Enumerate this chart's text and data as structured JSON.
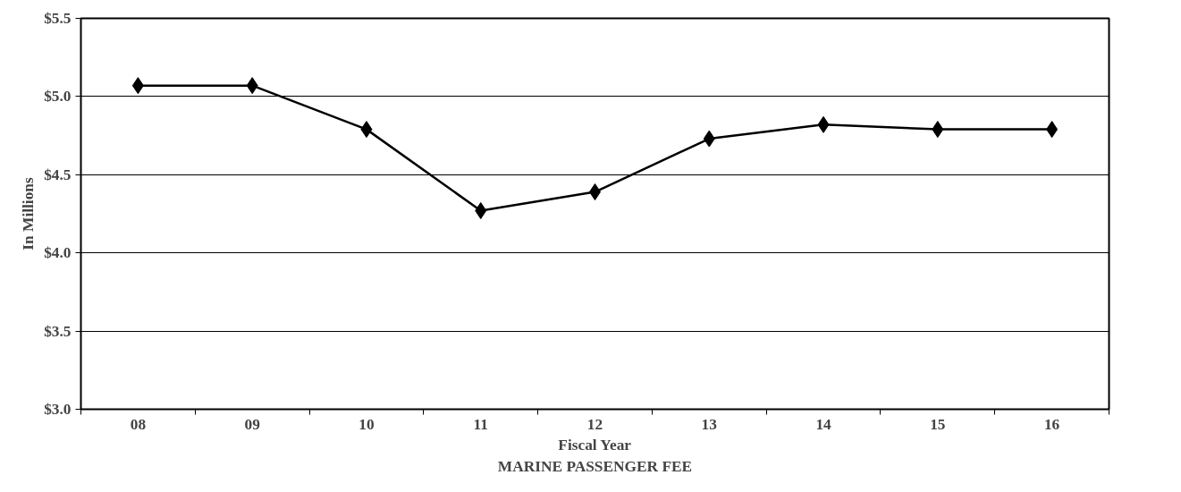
{
  "chart_data": {
    "type": "line",
    "title": "MARINE PASSENGER FEE",
    "xlabel": "Fiscal Year",
    "ylabel": "In Millions",
    "categories": [
      "08",
      "09",
      "10",
      "11",
      "12",
      "13",
      "14",
      "15",
      "16"
    ],
    "series": [
      {
        "color": "#000000",
        "values": [
          5.07,
          5.07,
          4.79,
          4.27,
          4.39,
          4.73,
          4.82,
          4.79,
          4.79
        ]
      }
    ],
    "ylim": [
      3.0,
      5.5
    ],
    "yticks": [
      {
        "value": 3.0,
        "label": "$3.0"
      },
      {
        "value": 3.5,
        "label": "$3.5"
      },
      {
        "value": 4.0,
        "label": "$4.0"
      },
      {
        "value": 4.5,
        "label": "$4.5"
      },
      {
        "value": 5.0,
        "label": "$5.0"
      },
      {
        "value": 5.5,
        "label": "$5.5"
      }
    ],
    "grid": "y",
    "marker": "diamond",
    "line_style": "solid"
  }
}
